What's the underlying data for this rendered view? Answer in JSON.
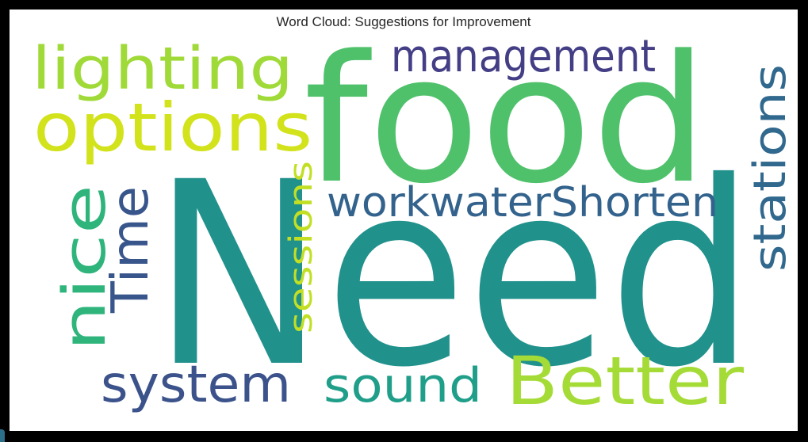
{
  "chart_data": {
    "type": "wordcloud",
    "title": "Word Cloud: Suggestions for Improvement",
    "words": [
      {
        "text": "Need",
        "weight": 100,
        "color": "#21918c",
        "rotated": false
      },
      {
        "text": "food",
        "weight": 70,
        "color": "#4fc16b",
        "rotated": false
      },
      {
        "text": "options",
        "weight": 38,
        "color": "#d2e21b",
        "rotated": false
      },
      {
        "text": "lighting",
        "weight": 33,
        "color": "#a0da39",
        "rotated": false
      },
      {
        "text": "Better",
        "weight": 35,
        "color": "#a5db36",
        "rotated": false
      },
      {
        "text": "management",
        "weight": 24,
        "color": "#433e85",
        "rotated": false
      },
      {
        "text": "nice",
        "weight": 33,
        "color": "#2fb47c",
        "rotated": true
      },
      {
        "text": "Time",
        "weight": 30,
        "color": "#39568c",
        "rotated": true
      },
      {
        "text": "workwaterShorten",
        "weight": 25,
        "color": "#33638d",
        "rotated": false
      },
      {
        "text": "system",
        "weight": 29,
        "color": "#3b528b",
        "rotated": false
      },
      {
        "text": "sound",
        "weight": 27,
        "color": "#1f9e89",
        "rotated": false
      },
      {
        "text": "stations",
        "weight": 25,
        "color": "#31688e",
        "rotated": true
      },
      {
        "text": "sessions",
        "weight": 19,
        "color": "#c2df23",
        "rotated": true
      }
    ]
  }
}
